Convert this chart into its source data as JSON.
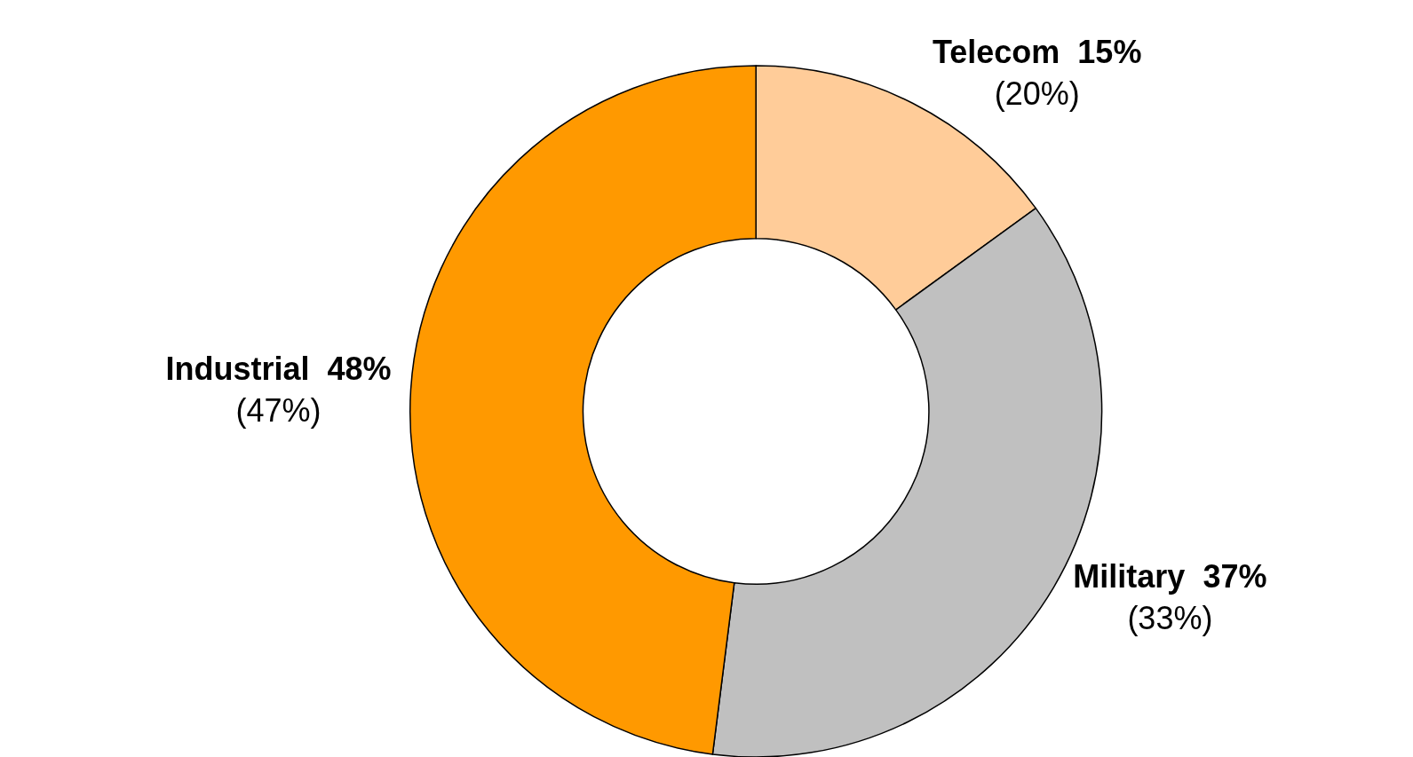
{
  "chart_data": {
    "type": "donut",
    "categories": [
      "Telecom",
      "Military",
      "Industrial"
    ],
    "values": [
      15,
      37,
      48
    ],
    "colors": [
      "#ffcc99",
      "#c0c0c0",
      "#ff9900"
    ],
    "value_labels": [
      "15%",
      "37%",
      "48%"
    ],
    "annotations": [
      "(20%)",
      "(33%)",
      "(47%)"
    ],
    "legend": false
  }
}
